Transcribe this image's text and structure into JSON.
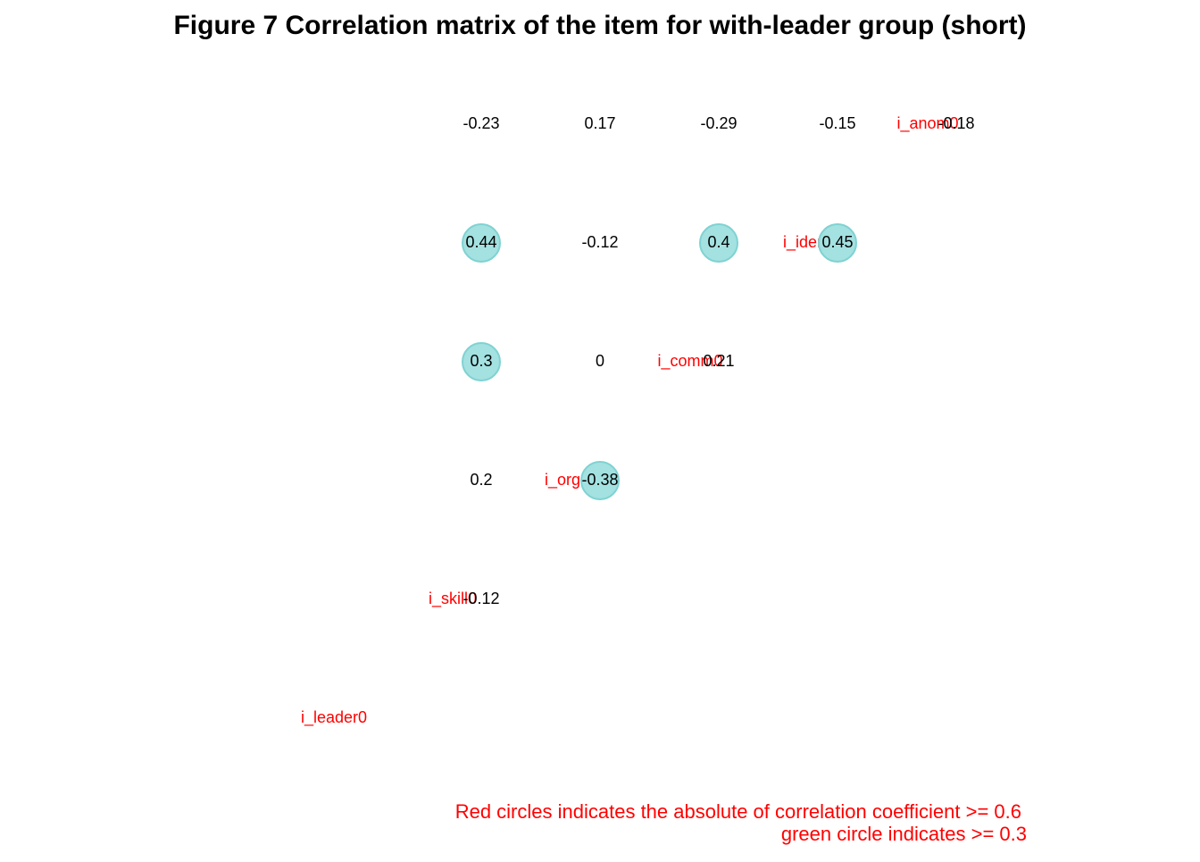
{
  "chart_data": {
    "type": "heatmap",
    "title": "Figure  7 Correlation matrix of the item for with-leader group (short)",
    "variables": [
      "i_leader0",
      "i_skill0",
      "i_orga0",
      "i_comm0",
      "i_iden0",
      "i_anom0"
    ],
    "correlations": [
      {
        "row": "i_anom0",
        "col": "i_leader0",
        "label": "-0.23",
        "value": -0.23
      },
      {
        "row": "i_anom0",
        "col": "i_skill0",
        "label": "0.17",
        "value": 0.17
      },
      {
        "row": "i_anom0",
        "col": "i_orga0",
        "label": "-0.29",
        "value": -0.29
      },
      {
        "row": "i_anom0",
        "col": "i_comm0",
        "label": "-0.15",
        "value": -0.15
      },
      {
        "row": "i_anom0",
        "col": "i_iden0",
        "label": "-0.18",
        "value": -0.18
      },
      {
        "row": "i_iden0",
        "col": "i_leader0",
        "label": "0.44",
        "value": 0.44
      },
      {
        "row": "i_iden0",
        "col": "i_skill0",
        "label": "-0.12",
        "value": -0.12
      },
      {
        "row": "i_iden0",
        "col": "i_orga0",
        "label": "0.4",
        "value": 0.4
      },
      {
        "row": "i_iden0",
        "col": "i_comm0",
        "label": "0.45",
        "value": 0.45
      },
      {
        "row": "i_comm0",
        "col": "i_leader0",
        "label": "0.3",
        "value": 0.3
      },
      {
        "row": "i_comm0",
        "col": "i_skill0",
        "label": "0",
        "value": 0
      },
      {
        "row": "i_comm0",
        "col": "i_orga0",
        "label": "0.21",
        "value": 0.21
      },
      {
        "row": "i_orga0",
        "col": "i_leader0",
        "label": "0.2",
        "value": 0.2
      },
      {
        "row": "i_orga0",
        "col": "i_skill0",
        "label": "-0.38",
        "value": -0.38
      },
      {
        "row": "i_skill0",
        "col": "i_leader0",
        "label": "-0.12",
        "value": -0.12
      }
    ],
    "highlight_threshold": 0.3,
    "strong_threshold": 0.6,
    "notes": [
      "Red circles indicates the absolute of correlation coefficient >= 0.6",
      "green circle indicates >= 0.3"
    ],
    "colors": {
      "variable_label": "#ff0000",
      "note_text": "#ff0000",
      "highlight_circle_fill": "#a4e1e1",
      "highlight_circle_stroke": "#7fd2d2",
      "strong_circle_fill": "#ff0000"
    }
  }
}
